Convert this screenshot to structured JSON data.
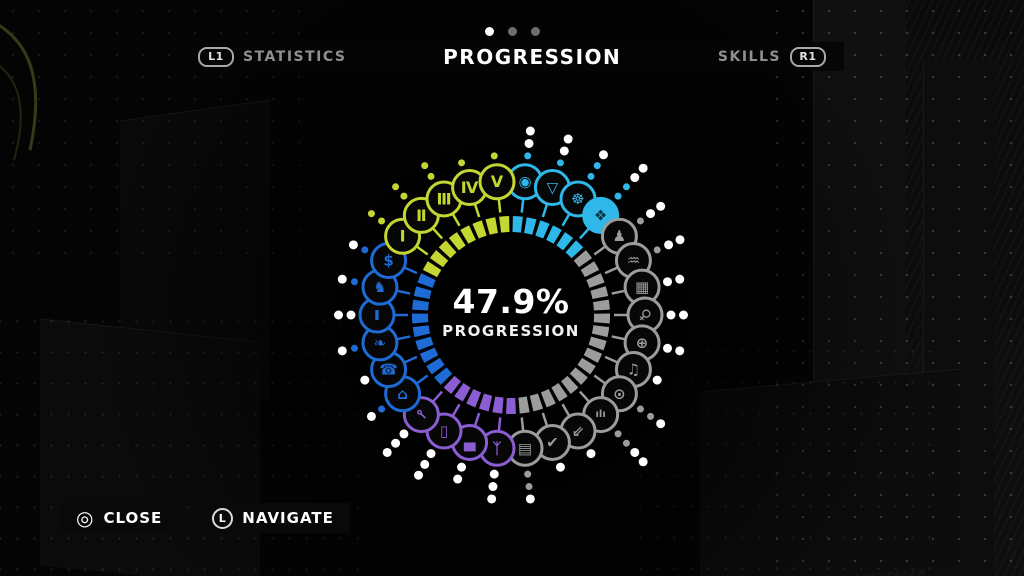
{
  "header": {
    "pager": {
      "count": 3,
      "active": 0
    },
    "left": {
      "button": "L1",
      "label": "STATISTICS"
    },
    "title": "PROGRESSION",
    "right": {
      "label": "SKILLS",
      "button": "R1"
    }
  },
  "footer": {
    "close": {
      "button_glyph": "◎",
      "label": "CLOSE"
    },
    "navigate": {
      "button_glyph": "L",
      "label": "NAVIGATE"
    }
  },
  "wheel": {
    "center_value": "47.9%",
    "center_label": "PROGRESSION",
    "colors": {
      "yellow": "#c3d631",
      "cyan": "#2eb7e8",
      "blue": "#1f6bd6",
      "purple": "#8a5ed2",
      "gray": "#9c9c9c",
      "white": "#ffffff"
    },
    "ring": {
      "segment_count": 45,
      "arcs": [
        {
          "from": 0,
          "to": 48,
          "color": "cyan"
        },
        {
          "from": 48,
          "to": 176,
          "color": "gray"
        },
        {
          "from": 176,
          "to": 224,
          "color": "purple"
        },
        {
          "from": 224,
          "to": 296,
          "color": "blue"
        },
        {
          "from": 296,
          "to": 360,
          "color": "yellow"
        }
      ]
    },
    "nodes": [
      {
        "id": "media-disc",
        "glyph": "◉",
        "angle": 6,
        "color": "cyan",
        "pips": "cww"
      },
      {
        "id": "triangle",
        "glyph": "▽",
        "angle": 18,
        "color": "cyan",
        "pips": "cww"
      },
      {
        "id": "steering-wheel",
        "glyph": "☸",
        "angle": 30,
        "color": "cyan",
        "pips": "ccw"
      },
      {
        "id": "fist",
        "glyph": "❖",
        "angle": 42,
        "color": "cyan",
        "pips": "ccww",
        "filled": true
      },
      {
        "id": "person",
        "glyph": "♟",
        "angle": 54,
        "color": "gray",
        "pips": "cww"
      },
      {
        "id": "waves",
        "glyph": "♒",
        "angle": 66,
        "color": "gray",
        "pips": "cww"
      },
      {
        "id": "qr-code",
        "glyph": "▦",
        "angle": 78,
        "color": "gray",
        "pips": "ww"
      },
      {
        "id": "magnifier",
        "glyph": "♀",
        "angle": 90,
        "color": "gray",
        "pips": "ww",
        "rot": 45
      },
      {
        "id": "crosshair",
        "glyph": "⊕",
        "angle": 102,
        "color": "gray",
        "pips": "ww"
      },
      {
        "id": "music-note",
        "glyph": "♫",
        "angle": 114,
        "color": "gray",
        "pips": "w"
      },
      {
        "id": "eye",
        "glyph": "⊙",
        "angle": 126,
        "color": "gray",
        "pips": "ccw"
      },
      {
        "id": "meter",
        "glyph": "ılı",
        "angle": 138,
        "color": "gray",
        "pips": "ccww",
        "small": true
      },
      {
        "id": "corner-arrow",
        "glyph": "⇙",
        "angle": 150,
        "color": "gray",
        "pips": "w"
      },
      {
        "id": "checkmark",
        "glyph": "✔",
        "angle": 162,
        "color": "gray",
        "pips": "w"
      },
      {
        "id": "banknote",
        "glyph": "▤",
        "angle": 174,
        "color": "gray",
        "pips": "ccw"
      },
      {
        "id": "runner",
        "glyph": "ᛉ",
        "angle": 186,
        "color": "purple",
        "pips": "www"
      },
      {
        "id": "car",
        "glyph": "▄",
        "angle": 198,
        "color": "purple",
        "pips": "ww"
      },
      {
        "id": "smartphone",
        "glyph": "▯",
        "angle": 210,
        "color": "purple",
        "pips": "www"
      },
      {
        "id": "key",
        "glyph": "⊸",
        "angle": 222,
        "color": "purple",
        "pips": "www",
        "rot": 225
      },
      {
        "id": "bag",
        "glyph": "⌂",
        "angle": 234,
        "color": "blue",
        "pips": "cw"
      },
      {
        "id": "phone",
        "glyph": "☎",
        "angle": 246,
        "color": "blue",
        "pips": "w"
      },
      {
        "id": "bird",
        "glyph": "❧",
        "angle": 258,
        "color": "blue",
        "pips": "cw"
      },
      {
        "id": "bottle",
        "glyph": "❚",
        "angle": 270,
        "color": "blue",
        "pips": "ww",
        "small": true
      },
      {
        "id": "chess-knight",
        "glyph": "♞",
        "angle": 282,
        "color": "blue",
        "pips": "cw"
      },
      {
        "id": "dollar",
        "glyph": "$",
        "angle": 294,
        "color": "blue",
        "pips": "cw"
      },
      {
        "id": "tier-1",
        "glyph": "Ⅰ",
        "angle": 306,
        "color": "yellow",
        "pips": "cc"
      },
      {
        "id": "tier-2",
        "glyph": "Ⅱ",
        "angle": 318,
        "color": "yellow",
        "pips": "cc"
      },
      {
        "id": "tier-3",
        "glyph": "Ⅲ",
        "angle": 330,
        "color": "yellow",
        "pips": "cc"
      },
      {
        "id": "tier-4",
        "glyph": "Ⅳ",
        "angle": 342,
        "color": "yellow",
        "pips": "c"
      },
      {
        "id": "tier-5",
        "glyph": "Ⅴ",
        "angle": 354,
        "color": "yellow",
        "pips": "c"
      }
    ]
  }
}
